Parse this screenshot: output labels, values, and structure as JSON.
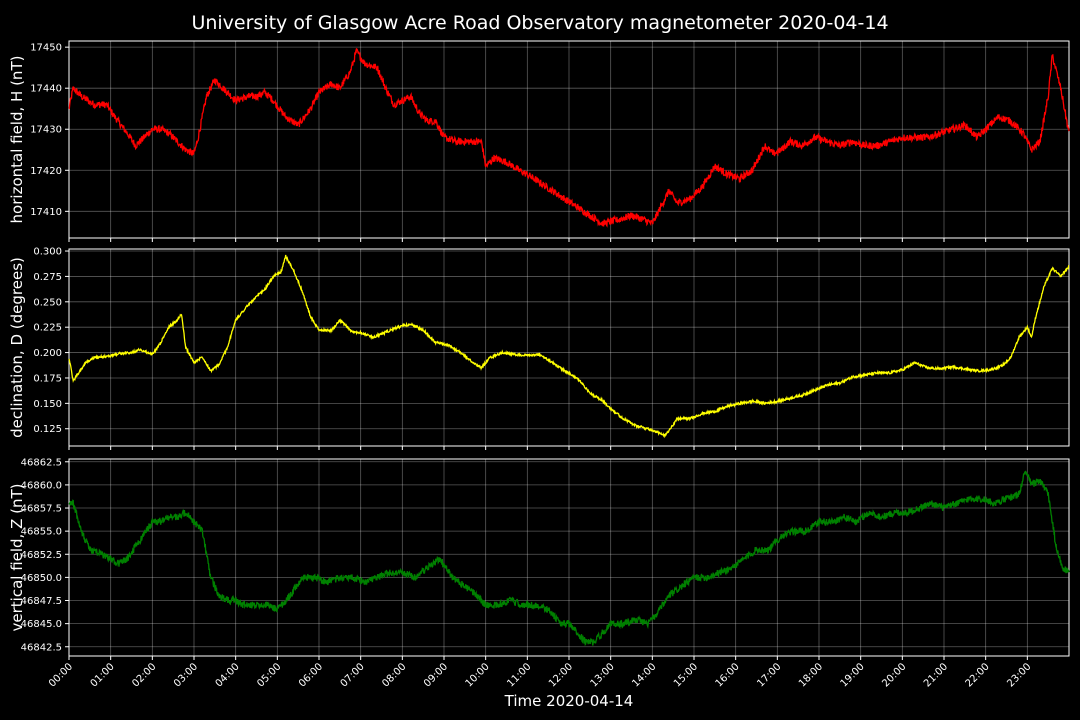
{
  "chart_data": {
    "title": "University of Glasgow Acre Road Observatory magnetometer 2020-04-14",
    "xlabel": "Time 2020-04-14",
    "type": "line",
    "grid": true,
    "x_ticks": [
      "00:00",
      "01:00",
      "02:00",
      "03:00",
      "04:00",
      "05:00",
      "06:00",
      "07:00",
      "08:00",
      "09:00",
      "10:00",
      "11:00",
      "12:00",
      "13:00",
      "14:00",
      "15:00",
      "16:00",
      "17:00",
      "18:00",
      "19:00",
      "20:00",
      "21:00",
      "22:00",
      "23:00"
    ],
    "xlim_hours": [
      0,
      24
    ],
    "panels": [
      {
        "ylabel": "horizontal field, H (nT)",
        "color": "#ff0000",
        "ylim": [
          17403.5,
          17451.5
        ],
        "yticks": [
          17410,
          17420,
          17430,
          17440,
          17450
        ],
        "ytick_labels": [
          "17410",
          "17420",
          "17430",
          "17440",
          "17450"
        ],
        "x": [
          0,
          0.1,
          0.3,
          0.6,
          0.9,
          1.1,
          1.4,
          1.6,
          1.8,
          2.0,
          2.2,
          2.4,
          2.6,
          2.8,
          3.0,
          3.1,
          3.3,
          3.5,
          3.7,
          4.0,
          4.3,
          4.5,
          4.7,
          4.9,
          5.2,
          5.5,
          5.8,
          6.0,
          6.3,
          6.5,
          6.75,
          6.9,
          7.1,
          7.4,
          7.6,
          7.8,
          8.0,
          8.2,
          8.4,
          8.6,
          8.8,
          9.0,
          9.3,
          9.6,
          9.9,
          10.0,
          10.2,
          10.5,
          10.8,
          11.0,
          11.3,
          11.6,
          11.9,
          12.2,
          12.5,
          12.8,
          13.2,
          13.5,
          13.8,
          14.0,
          14.2,
          14.4,
          14.6,
          14.9,
          15.2,
          15.5,
          15.8,
          16.1,
          16.4,
          16.7,
          16.9,
          17.1,
          17.3,
          17.6,
          17.9,
          18.2,
          18.5,
          18.8,
          19.1,
          19.4,
          19.7,
          20.0,
          20.3,
          20.6,
          20.9,
          21.2,
          21.5,
          21.8,
          22.0,
          22.3,
          22.6,
          22.9,
          23.1,
          23.3,
          23.5,
          23.6,
          23.8,
          24.0
        ],
        "values": [
          17435,
          17440,
          17438,
          17436,
          17436,
          17433,
          17429,
          17426,
          17428,
          17430,
          17430,
          17429,
          17427,
          17425,
          17424,
          17428,
          17438,
          17442,
          17440,
          17437,
          17438,
          17438,
          17439,
          17437,
          17433,
          17431,
          17435,
          17439,
          17441,
          17440,
          17444,
          17449,
          17446,
          17445,
          17440,
          17436,
          17437,
          17438,
          17434,
          17432,
          17432,
          17428,
          17427,
          17427,
          17427,
          17421,
          17423,
          17422,
          17420,
          17419,
          17417,
          17415,
          17413,
          17411,
          17409,
          17407,
          17408,
          17409,
          17408,
          17407,
          17411,
          17415,
          17412,
          17413,
          17416,
          17421,
          17419,
          17418,
          17420,
          17426,
          17424,
          17425,
          17427,
          17426,
          17428,
          17427,
          17426,
          17427,
          17426,
          17426,
          17427,
          17428,
          17428,
          17428,
          17429,
          17430,
          17431,
          17428,
          17430,
          17433,
          17432,
          17429,
          17425,
          17427,
          17438,
          17448,
          17440,
          17429
        ]
      },
      {
        "ylabel": "declination, D (degrees)",
        "color": "#ffff00",
        "ylim": [
          0.108,
          0.302
        ],
        "yticks": [
          0.125,
          0.15,
          0.175,
          0.2,
          0.225,
          0.25,
          0.275,
          0.3
        ],
        "ytick_labels": [
          "0.125",
          "0.150",
          "0.175",
          "0.200",
          "0.225",
          "0.250",
          "0.275",
          "0.300"
        ],
        "x": [
          0,
          0.1,
          0.2,
          0.4,
          0.6,
          0.9,
          1.2,
          1.5,
          1.7,
          2.0,
          2.2,
          2.4,
          2.6,
          2.7,
          2.8,
          3.0,
          3.2,
          3.4,
          3.6,
          3.8,
          4.0,
          4.3,
          4.5,
          4.7,
          4.9,
          5.1,
          5.2,
          5.4,
          5.6,
          5.8,
          6.0,
          6.3,
          6.5,
          6.8,
          7.0,
          7.3,
          7.6,
          7.9,
          8.2,
          8.5,
          8.8,
          9.1,
          9.4,
          9.7,
          9.9,
          10.1,
          10.4,
          10.7,
          11.0,
          11.3,
          11.6,
          11.9,
          12.2,
          12.5,
          12.8,
          13.0,
          13.3,
          13.6,
          13.9,
          14.1,
          14.3,
          14.6,
          14.9,
          15.2,
          15.5,
          15.8,
          16.1,
          16.4,
          16.7,
          17.0,
          17.3,
          17.6,
          17.9,
          18.2,
          18.5,
          18.8,
          19.1,
          19.4,
          19.7,
          20.0,
          20.3,
          20.6,
          20.9,
          21.2,
          21.5,
          21.8,
          22.1,
          22.4,
          22.6,
          22.8,
          23.0,
          23.1,
          23.2,
          23.4,
          23.6,
          23.8,
          24.0
        ],
        "values": [
          0.195,
          0.172,
          0.178,
          0.19,
          0.195,
          0.196,
          0.199,
          0.2,
          0.203,
          0.198,
          0.21,
          0.225,
          0.232,
          0.238,
          0.205,
          0.19,
          0.196,
          0.182,
          0.188,
          0.205,
          0.232,
          0.247,
          0.255,
          0.262,
          0.275,
          0.28,
          0.295,
          0.28,
          0.26,
          0.235,
          0.222,
          0.222,
          0.232,
          0.22,
          0.22,
          0.215,
          0.22,
          0.225,
          0.228,
          0.222,
          0.21,
          0.207,
          0.2,
          0.19,
          0.185,
          0.195,
          0.2,
          0.198,
          0.197,
          0.198,
          0.19,
          0.182,
          0.175,
          0.16,
          0.153,
          0.145,
          0.135,
          0.128,
          0.125,
          0.122,
          0.118,
          0.135,
          0.135,
          0.14,
          0.142,
          0.147,
          0.15,
          0.152,
          0.15,
          0.152,
          0.155,
          0.158,
          0.163,
          0.168,
          0.17,
          0.176,
          0.178,
          0.18,
          0.18,
          0.183,
          0.19,
          0.185,
          0.184,
          0.186,
          0.184,
          0.182,
          0.183,
          0.187,
          0.195,
          0.215,
          0.225,
          0.215,
          0.235,
          0.265,
          0.283,
          0.275,
          0.285
        ]
      },
      {
        "ylabel": "vertical field, Z (nT)",
        "color": "#008000",
        "ylim": [
          46841.5,
          46862.8
        ],
        "yticks": [
          46842.5,
          46845,
          46847.5,
          46850,
          46852.5,
          46855,
          46857.5,
          46860,
          46862.5
        ],
        "ytick_labels": [
          "46842.5",
          "46845.0",
          "46847.5",
          "46850.0",
          "46852.5",
          "46855.0",
          "46857.5",
          "46860.0",
          "46862.5"
        ],
        "x": [
          0,
          0.1,
          0.3,
          0.5,
          0.8,
          1.0,
          1.2,
          1.4,
          1.7,
          2.0,
          2.2,
          2.4,
          2.6,
          2.8,
          3.0,
          3.2,
          3.4,
          3.6,
          3.8,
          4.0,
          4.2,
          4.5,
          4.8,
          5.0,
          5.3,
          5.6,
          5.9,
          6.2,
          6.5,
          6.8,
          7.1,
          7.4,
          7.7,
          8.0,
          8.3,
          8.6,
          8.9,
          9.2,
          9.5,
          9.8,
          10.0,
          10.3,
          10.6,
          10.9,
          11.2,
          11.5,
          11.8,
          12.0,
          12.2,
          12.4,
          12.6,
          12.8,
          13.0,
          13.3,
          13.6,
          13.9,
          14.1,
          14.4,
          14.7,
          15.0,
          15.3,
          15.6,
          15.9,
          16.2,
          16.5,
          16.8,
          17.1,
          17.4,
          17.7,
          18.0,
          18.3,
          18.6,
          18.9,
          19.2,
          19.5,
          19.8,
          20.1,
          20.4,
          20.7,
          21.0,
          21.3,
          21.6,
          21.9,
          22.2,
          22.5,
          22.8,
          22.95,
          23.1,
          23.3,
          23.5,
          23.7,
          23.85,
          24.0
        ],
        "values": [
          46858,
          46858,
          46855,
          46853,
          46852.5,
          46852,
          46851.5,
          46852,
          46854,
          46856,
          46856,
          46856.5,
          46856.5,
          46857,
          46856,
          46855,
          46850,
          46848,
          46847.5,
          46847.5,
          46847,
          46847,
          46847,
          46846.5,
          46848,
          46850,
          46850,
          46849.5,
          46850,
          46850,
          46849.5,
          46850,
          46850.5,
          46850.5,
          46850,
          46851,
          46852,
          46850,
          46849,
          46848,
          46847,
          46847,
          46847.5,
          46847,
          46847,
          46846.5,
          46845,
          46845,
          46844,
          46843,
          46843,
          46844,
          46845,
          46845,
          46845.5,
          46845,
          46846,
          46848,
          46849,
          46850,
          46850,
          46850.5,
          46851,
          46852,
          46853,
          46853,
          46854.5,
          46855,
          46855,
          46856,
          46856,
          46856.5,
          46856,
          46857,
          46856.5,
          46857,
          46857,
          46857.5,
          46858,
          46857.5,
          46858,
          46858.5,
          46858.5,
          46858,
          46858.5,
          46859,
          46861.5,
          46860,
          46860.5,
          46859,
          46853,
          46851,
          46850.5
        ]
      }
    ]
  }
}
